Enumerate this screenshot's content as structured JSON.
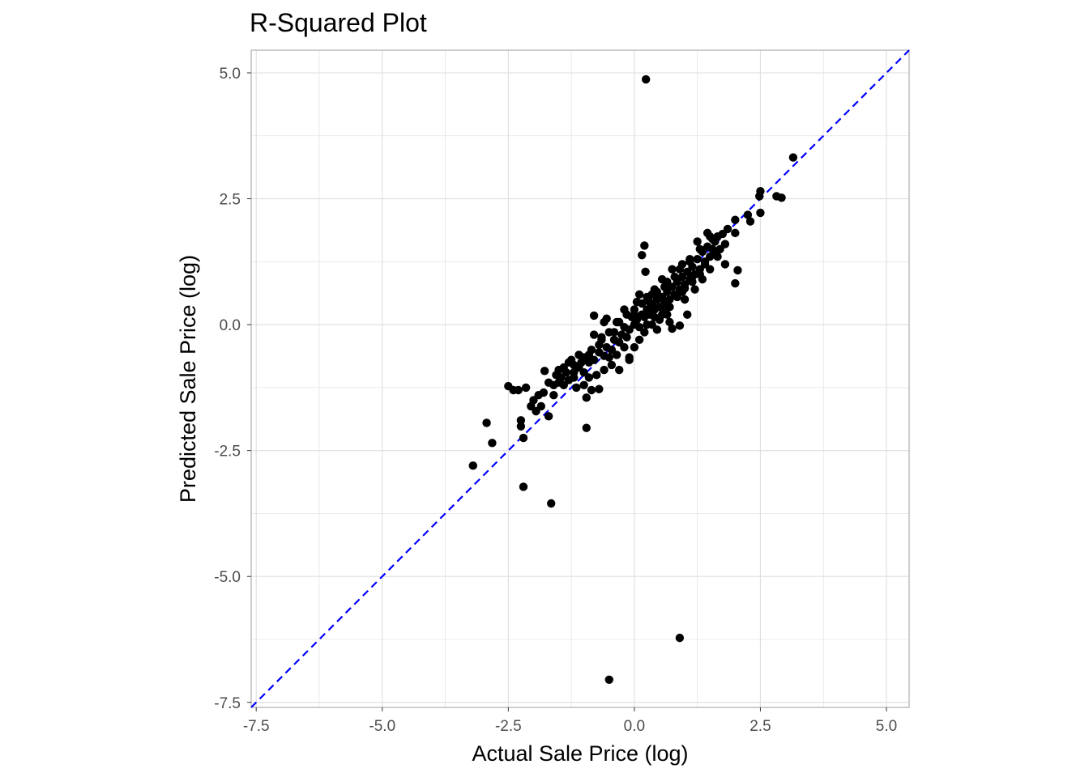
{
  "chart_data": {
    "type": "scatter",
    "title": "R-Squared Plot",
    "xlabel": "Actual Sale Price (log)",
    "ylabel": "Predicted Sale Price (log)",
    "xlim": [
      -7.6,
      5.45
    ],
    "ylim": [
      -7.6,
      5.45
    ],
    "x_ticks": [
      -7.5,
      -5.0,
      -2.5,
      0.0,
      2.5,
      5.0
    ],
    "y_ticks": [
      -7.5,
      -5.0,
      -2.5,
      0.0,
      2.5,
      5.0
    ],
    "x_tick_labels": [
      "-7.5",
      "-5.0",
      "-2.5",
      "0.0",
      "2.5",
      "5.0"
    ],
    "y_tick_labels": [
      "-7.5",
      "-5.0",
      "-2.5",
      "0.0",
      "2.5",
      "5.0"
    ],
    "grid": true,
    "reference_line": {
      "type": "y = x",
      "style": "dashed",
      "color": "#0000ff"
    },
    "point_color": "#000000",
    "panel_border_color": "#b3b3b3",
    "grid_color": "#dedede",
    "points": [
      [
        0.23,
        4.87
      ],
      [
        -0.5,
        -7.05
      ],
      [
        0.9,
        -6.22
      ],
      [
        -1.65,
        -3.55
      ],
      [
        -2.2,
        -3.22
      ],
      [
        -3.2,
        -2.8
      ],
      [
        -2.82,
        -2.35
      ],
      [
        -2.93,
        -1.95
      ],
      [
        -2.2,
        -2.25
      ],
      [
        -0.95,
        -2.05
      ],
      [
        3.15,
        3.32
      ],
      [
        2.5,
        2.65
      ],
      [
        2.48,
        2.55
      ],
      [
        2.82,
        2.55
      ],
      [
        2.92,
        2.52
      ],
      [
        2.5,
        2.22
      ],
      [
        2.3,
        2.05
      ],
      [
        2.25,
        2.18
      ],
      [
        2.0,
        2.08
      ],
      [
        2.0,
        1.82
      ],
      [
        2.05,
        1.08
      ],
      [
        2.0,
        0.82
      ],
      [
        1.8,
        1.2
      ],
      [
        0.2,
        1.57
      ],
      [
        0.15,
        1.38
      ],
      [
        0.22,
        1.05
      ],
      [
        -0.8,
        0.18
      ],
      [
        1.05,
        0.2
      ],
      [
        0.9,
        -0.02
      ],
      [
        -1.78,
        -0.92
      ],
      [
        -2.5,
        -1.22
      ],
      [
        -2.4,
        -1.3
      ],
      [
        -2.3,
        -1.3
      ],
      [
        -2.15,
        -1.25
      ],
      [
        -2.25,
        -1.9
      ],
      [
        -2.25,
        -2.02
      ],
      [
        -2.05,
        -1.62
      ],
      [
        -1.95,
        -1.72
      ],
      [
        -1.85,
        -1.62
      ],
      [
        -1.7,
        -1.82
      ],
      [
        -1.6,
        -1.4
      ],
      [
        -1.5,
        -1.15
      ],
      [
        -1.4,
        -1.2
      ],
      [
        -0.85,
        -1.3
      ],
      [
        -0.7,
        -1.28
      ],
      [
        -1.8,
        -1.35
      ],
      [
        -1.6,
        -1.2
      ],
      [
        -1.5,
        -0.9
      ],
      [
        -1.35,
        -0.95
      ],
      [
        -1.2,
        -1.05
      ],
      [
        -1.1,
        -0.85
      ],
      [
        -1.0,
        -0.95
      ],
      [
        -0.9,
        -0.75
      ],
      [
        -0.8,
        -0.7
      ],
      [
        -0.7,
        -0.55
      ],
      [
        -0.6,
        -0.62
      ],
      [
        -0.55,
        -0.45
      ],
      [
        -0.45,
        -0.5
      ],
      [
        -0.4,
        -0.3
      ],
      [
        -0.3,
        -0.35
      ],
      [
        -0.25,
        -0.2
      ],
      [
        -0.15,
        -0.25
      ],
      [
        -0.1,
        -0.1
      ],
      [
        0.0,
        0.0
      ],
      [
        0.05,
        0.1
      ],
      [
        0.1,
        -0.05
      ],
      [
        0.15,
        0.2
      ],
      [
        0.2,
        0.15
      ],
      [
        0.25,
        0.3
      ],
      [
        0.3,
        0.2
      ],
      [
        0.35,
        0.4
      ],
      [
        0.4,
        0.3
      ],
      [
        0.45,
        0.5
      ],
      [
        0.5,
        0.35
      ],
      [
        0.55,
        0.55
      ],
      [
        0.6,
        0.45
      ],
      [
        0.65,
        0.65
      ],
      [
        0.7,
        0.5
      ],
      [
        0.75,
        0.75
      ],
      [
        0.8,
        0.6
      ],
      [
        0.85,
        0.85
      ],
      [
        0.9,
        0.7
      ],
      [
        0.95,
        0.95
      ],
      [
        1.0,
        0.8
      ],
      [
        1.05,
        1.05
      ],
      [
        1.1,
        0.9
      ],
      [
        1.15,
        1.15
      ],
      [
        1.2,
        1.0
      ],
      [
        1.25,
        1.3
      ],
      [
        1.3,
        1.1
      ],
      [
        1.35,
        1.45
      ],
      [
        1.4,
        1.25
      ],
      [
        1.45,
        1.55
      ],
      [
        1.5,
        1.35
      ],
      [
        1.55,
        1.7
      ],
      [
        1.6,
        1.45
      ],
      [
        1.65,
        1.75
      ],
      [
        1.7,
        1.5
      ],
      [
        1.75,
        1.8
      ],
      [
        1.85,
        1.9
      ],
      [
        1.45,
        1.82
      ],
      [
        1.25,
        1.65
      ],
      [
        1.1,
        1.25
      ],
      [
        0.8,
        0.95
      ],
      [
        0.6,
        0.75
      ],
      [
        0.35,
        0.6
      ],
      [
        0.05,
        0.45
      ],
      [
        -0.15,
        0.2
      ],
      [
        -0.35,
        0.05
      ],
      [
        -0.5,
        -0.15
      ],
      [
        -0.65,
        -0.3
      ],
      [
        -0.85,
        -0.5
      ],
      [
        -1.0,
        -0.65
      ],
      [
        -1.2,
        -0.8
      ],
      [
        -1.3,
        -0.75
      ],
      [
        -0.6,
        0.05
      ],
      [
        -0.55,
        0.12
      ],
      [
        -0.3,
        0.05
      ],
      [
        -0.2,
        0.3
      ],
      [
        0.0,
        0.3
      ],
      [
        0.15,
        0.42
      ],
      [
        0.4,
        0.7
      ],
      [
        0.55,
        0.9
      ],
      [
        0.75,
        1.1
      ],
      [
        0.95,
        1.2
      ],
      [
        -0.45,
        -0.8
      ],
      [
        -0.3,
        -0.9
      ],
      [
        -0.1,
        -0.7
      ],
      [
        0.0,
        -0.45
      ],
      [
        0.1,
        -0.3
      ],
      [
        0.2,
        -0.15
      ],
      [
        0.35,
        0.0
      ],
      [
        0.5,
        0.1
      ],
      [
        0.65,
        0.2
      ],
      [
        0.7,
        0.05
      ],
      [
        0.75,
        -0.08
      ],
      [
        1.0,
        0.5
      ],
      [
        1.2,
        0.7
      ],
      [
        1.35,
        0.9
      ],
      [
        1.5,
        1.1
      ],
      [
        1.65,
        1.35
      ],
      [
        1.8,
        1.6
      ],
      [
        -0.1,
        -0.65
      ],
      [
        -0.9,
        -1.05
      ],
      [
        -1.0,
        -1.2
      ],
      [
        -1.15,
        -1.25
      ],
      [
        -1.3,
        -1.1
      ],
      [
        -1.45,
        -1.05
      ],
      [
        -0.75,
        -1.0
      ],
      [
        -0.6,
        -0.9
      ],
      [
        -0.35,
        -0.6
      ],
      [
        -0.2,
        -0.45
      ],
      [
        0.25,
        0.0
      ],
      [
        0.4,
        0.15
      ],
      [
        0.6,
        0.35
      ],
      [
        0.85,
        0.55
      ],
      [
        1.0,
        0.72
      ],
      [
        1.15,
        0.85
      ],
      [
        1.3,
        1.0
      ],
      [
        0.45,
        -0.1
      ],
      [
        -0.05,
        0.15
      ],
      [
        0.1,
        0.6
      ],
      [
        -0.8,
        -0.2
      ],
      [
        -0.65,
        -0.25
      ],
      [
        -1.1,
        -0.6
      ],
      [
        -1.25,
        -0.7
      ],
      [
        -1.4,
        -0.85
      ],
      [
        -1.55,
        -1.0
      ],
      [
        -1.7,
        -1.15
      ],
      [
        -1.9,
        -1.4
      ],
      [
        -2.0,
        -1.5
      ],
      [
        -0.95,
        -1.45
      ],
      [
        -0.5,
        -0.65
      ],
      [
        0.3,
        0.45
      ],
      [
        0.55,
        0.2
      ],
      [
        0.7,
        0.35
      ],
      [
        0.95,
        0.65
      ],
      [
        1.15,
        0.95
      ],
      [
        1.4,
        1.2
      ],
      [
        1.55,
        1.5
      ],
      [
        1.6,
        1.65
      ],
      [
        1.5,
        1.75
      ],
      [
        1.3,
        1.5
      ],
      [
        1.1,
        1.3
      ],
      [
        0.9,
        1.1
      ],
      [
        0.65,
        0.85
      ],
      [
        0.45,
        0.65
      ],
      [
        0.25,
        0.55
      ],
      [
        0.0,
        0.2
      ],
      [
        -0.2,
        -0.05
      ],
      [
        -0.4,
        -0.15
      ],
      [
        -0.7,
        -0.4
      ],
      [
        -0.9,
        -0.6
      ],
      [
        -1.05,
        -0.75
      ],
      [
        -1.2,
        -0.95
      ]
    ]
  }
}
